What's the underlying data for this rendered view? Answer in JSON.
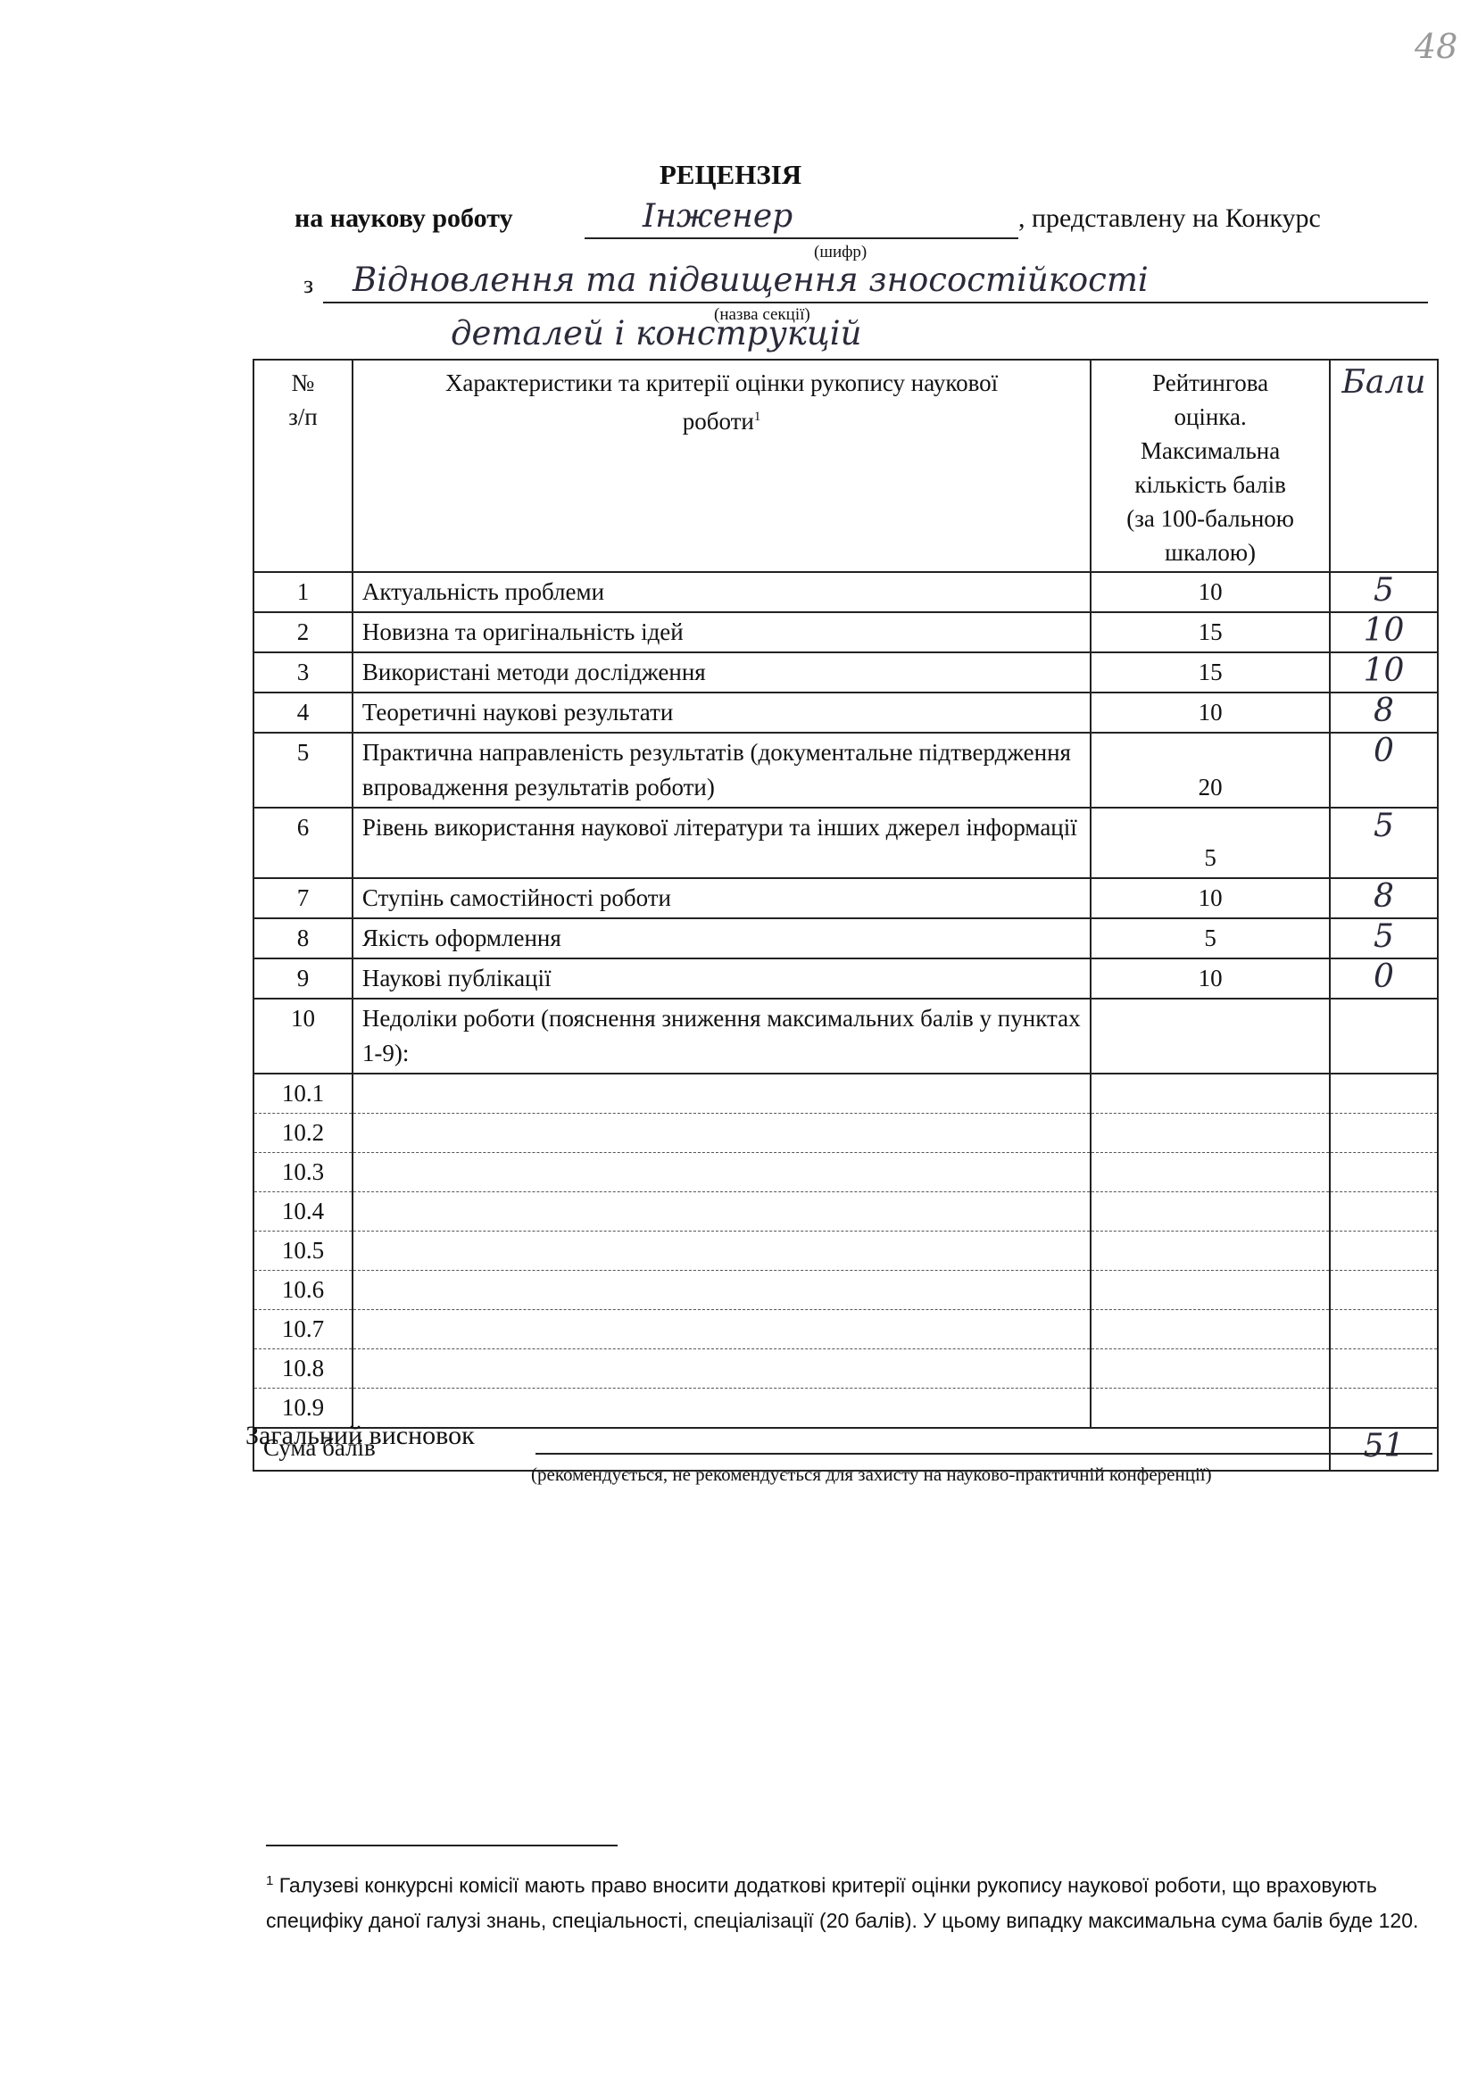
{
  "page_number": "48",
  "header": {
    "title": "РЕЦЕНЗІЯ",
    "line1_prefix": "на наукову роботу",
    "cipher": "Інженер",
    "line1_suffix": ", представлену на Конкурс",
    "cipher_caption": "(шифр)",
    "section_prefix": "з",
    "section": [
      "Відновлення та підвищення зносостійкості",
      "деталей і конструкцій"
    ],
    "section_caption": "(назва секції)"
  },
  "table": {
    "header": [
      "№\nз/п",
      "Характеристики та критерії оцінки рукопису наукової\nроботи",
      "Рейтингова\nоцінка.\nМаксимальна\nкількість балів\n(за 100-бальною\nшкалою)",
      "Бали"
    ],
    "header_footnote_mark": "1",
    "rows": [
      [
        "1",
        "Актуальність проблеми",
        "10",
        "5"
      ],
      [
        "2",
        "Новизна та оригінальність ідей",
        "15",
        "10"
      ],
      [
        "3",
        "Використані методи дослідження",
        "15",
        "10"
      ],
      [
        "4",
        "Теоретичні наукові результати",
        "10",
        "8"
      ],
      [
        "5",
        "Практична направленість результатів (документальне підтвердження впровадження результатів роботи)",
        "20",
        "0"
      ],
      [
        "6",
        "Рівень використання наукової літератури та інших джерел інформації",
        "5",
        "5"
      ],
      [
        "7",
        "Ступінь самостійності роботи",
        "10",
        "8"
      ],
      [
        "8",
        "Якість оформлення",
        "5",
        "5"
      ],
      [
        "9",
        "Наукові публікації",
        "10",
        "0"
      ],
      [
        "10",
        "Недоліки роботи (пояснення зниження максимальних балів у пунктах 1-9):"
      ],
      [
        "10.1"
      ],
      [
        "10.2"
      ],
      [
        "10.3"
      ],
      [
        "10.4"
      ],
      [
        "10.5"
      ],
      [
        "10.6"
      ],
      [
        "10.7"
      ],
      [
        "10.8"
      ],
      [
        "10.9"
      ]
    ],
    "sum_label": "Сума балів",
    "sum_value": "51"
  },
  "conclusion": {
    "label": "Загальний висновок",
    "caption": "(рекомендується, не рекомендується для захисту на науково-практичній конференції)"
  },
  "footnote": {
    "mark": "1",
    "text": "Галузеві конкурсні комісії мають право вносити додаткові критерії оцінки рукопису наукової роботи, що враховують специфіку даної галузі знань, спеціальності, спеціалізації (20 балів). У цьому випадку максимальна сума балів буде 120."
  }
}
